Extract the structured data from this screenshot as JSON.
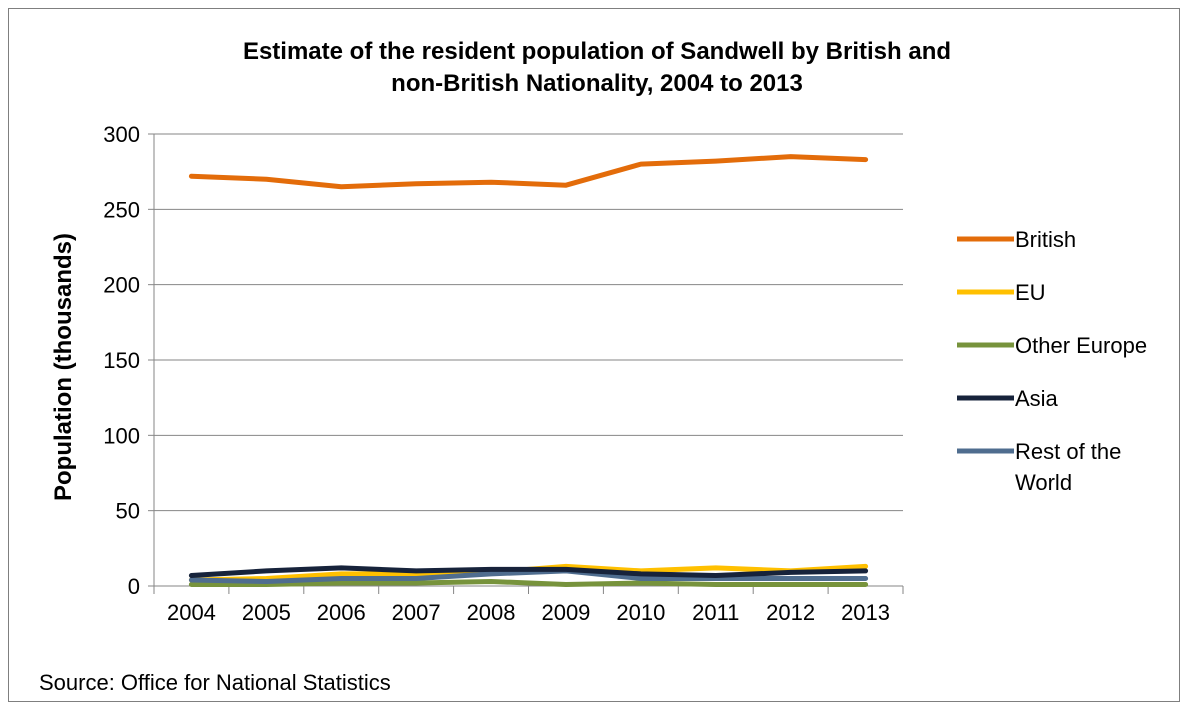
{
  "chart_data": {
    "type": "line",
    "title_line1": "Estimate of the resident population of Sandwell by British and",
    "title_line2": "non-British Nationality, 2004 to 2013",
    "xlabel": "",
    "ylabel": "Population (thousands)",
    "categories": [
      "2004",
      "2005",
      "2006",
      "2007",
      "2008",
      "2009",
      "2010",
      "2011",
      "2012",
      "2013"
    ],
    "ylim": [
      0,
      300
    ],
    "yticks": [
      0,
      50,
      100,
      150,
      200,
      250,
      300
    ],
    "grid": true,
    "legend_position": "right",
    "series": [
      {
        "name": "British",
        "color": "#e36c0a",
        "values": [
          272,
          270,
          265,
          267,
          268,
          266,
          280,
          282,
          285,
          283
        ]
      },
      {
        "name": "EU",
        "color": "#ffc000",
        "values": [
          4,
          5,
          8,
          8,
          9,
          13,
          10,
          12,
          10,
          13
        ]
      },
      {
        "name": "Other Europe",
        "color": "#77933c",
        "values": [
          1,
          1,
          2,
          2,
          3,
          1,
          2,
          1,
          1,
          1
        ]
      },
      {
        "name": "Asia",
        "color": "#17233b",
        "values": [
          7,
          10,
          12,
          10,
          11,
          11,
          8,
          7,
          9,
          10
        ]
      },
      {
        "name": "Rest of the World",
        "color": "#4f6d8f",
        "values": [
          4,
          3,
          5,
          5,
          8,
          10,
          5,
          5,
          5,
          5
        ]
      }
    ],
    "legend_labels": {
      "british": "British",
      "eu": "EU",
      "other_europe": "Other Europe",
      "asia": "Asia",
      "rest_line1": "Rest of the",
      "rest_line2": "World"
    }
  },
  "source": "Source: Office for National Statistics"
}
